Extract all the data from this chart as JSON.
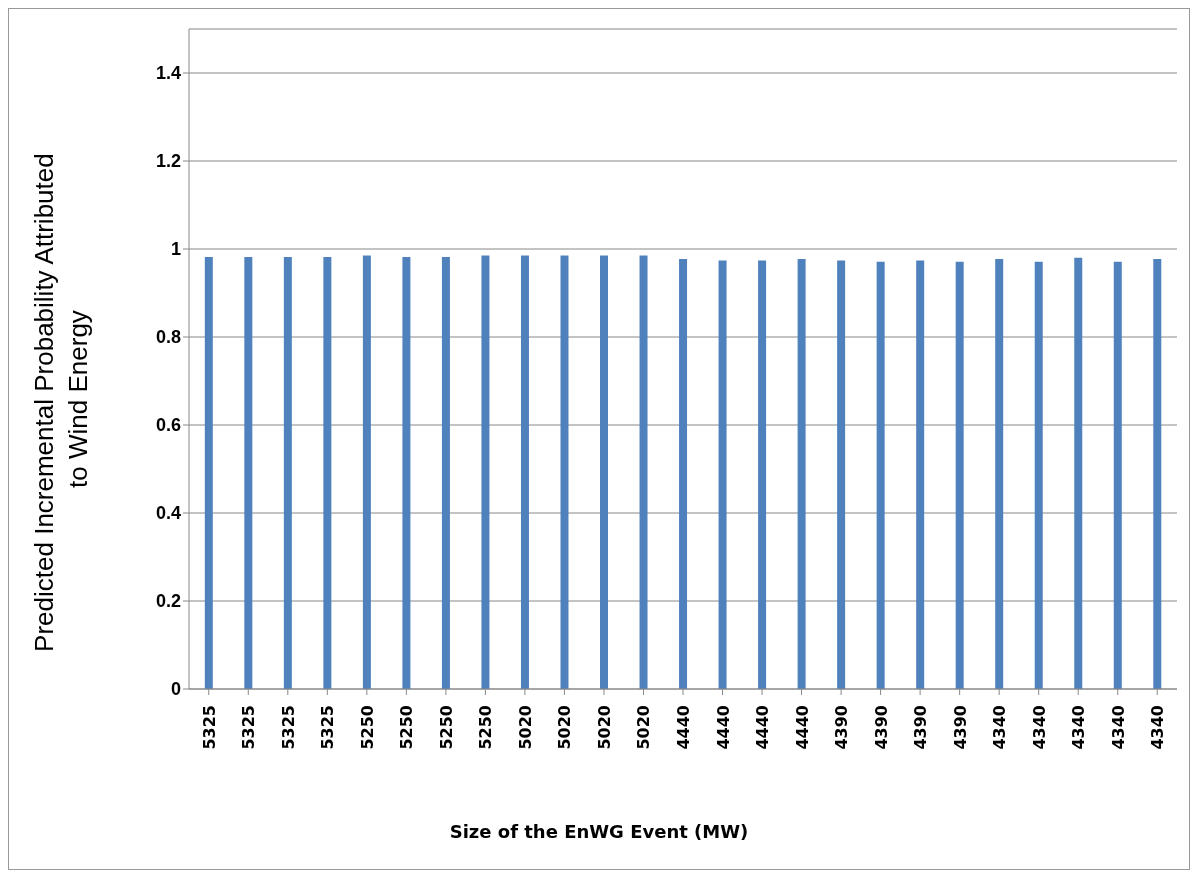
{
  "chart_data": {
    "type": "bar",
    "xlabel": "Size of the EnWG Event (MW)",
    "ylabel": "Predicted Incremental Probability Attributed  to Wind Energy",
    "categories": [
      "5325",
      "5325",
      "5325",
      "5325",
      "5250",
      "5250",
      "5250",
      "5250",
      "5020",
      "5020",
      "5020",
      "5020",
      "4440",
      "4440",
      "4440",
      "4440",
      "4390",
      "4390",
      "4390",
      "4390",
      "4340",
      "4340",
      "4340",
      "4340",
      "4340"
    ],
    "values": [
      0.982,
      0.982,
      0.982,
      0.982,
      0.985,
      0.982,
      0.982,
      0.985,
      0.985,
      0.985,
      0.985,
      0.985,
      0.977,
      0.974,
      0.974,
      0.977,
      0.974,
      0.971,
      0.974,
      0.971,
      0.977,
      0.971,
      0.98,
      0.971,
      0.977
    ],
    "color": "#4f81bd",
    "ylim": [
      0,
      1.5
    ],
    "yticks": [
      0,
      0.2,
      0.4,
      0.6,
      0.8,
      1,
      1.2,
      1.4
    ],
    "grid": "y"
  }
}
